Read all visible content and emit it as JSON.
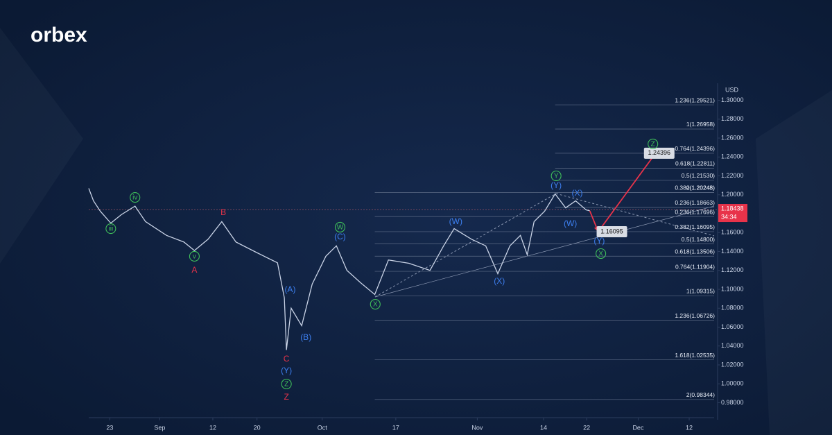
{
  "brand": "orbex",
  "chart_data": {
    "type": "line",
    "y_label": "USD",
    "xlim": [
      0,
      120
    ],
    "ylim": [
      0.962,
      1.318
    ],
    "xticks": [
      {
        "value": 4,
        "label": "23"
      },
      {
        "value": 13.5,
        "label": "Sep"
      },
      {
        "value": 23.6,
        "label": "12"
      },
      {
        "value": 32,
        "label": "20"
      },
      {
        "value": 44.4,
        "label": "Oct"
      },
      {
        "value": 58.4,
        "label": "17"
      },
      {
        "value": 73.9,
        "label": "Nov"
      },
      {
        "value": 86.5,
        "label": "14"
      },
      {
        "value": 94.7,
        "label": "22"
      },
      {
        "value": 104.5,
        "label": "Dec"
      },
      {
        "value": 114.2,
        "label": "12"
      }
    ],
    "yticks": [
      {
        "value": 0.98,
        "label": "0.98000"
      },
      {
        "value": 1.0,
        "label": "1.00000"
      },
      {
        "value": 1.02,
        "label": "1.02000"
      },
      {
        "value": 1.04,
        "label": "1.04000"
      },
      {
        "value": 1.06,
        "label": "1.06000"
      },
      {
        "value": 1.08,
        "label": "1.08000"
      },
      {
        "value": 1.1,
        "label": "1.10000"
      },
      {
        "value": 1.12,
        "label": "1.12000"
      },
      {
        "value": 1.14,
        "label": "1.14000"
      },
      {
        "value": 1.16,
        "label": "1.16000"
      },
      {
        "value": 1.18,
        "label": "1.18000"
      },
      {
        "value": 1.2,
        "label": "1.20000"
      },
      {
        "value": 1.22,
        "label": "1.22000"
      },
      {
        "value": 1.24,
        "label": "1.24000"
      },
      {
        "value": 1.26,
        "label": "1.26000"
      },
      {
        "value": 1.28,
        "label": "1.28000"
      },
      {
        "value": 1.3,
        "label": "1.30000"
      }
    ],
    "x": [
      0,
      0.9,
      2.2,
      4.2,
      6.2,
      8.8,
      10.8,
      14.8,
      18.1,
      20.1,
      22.7,
      25.3,
      28,
      31.9,
      35.9,
      37.2,
      37.6,
      38.5,
      40.5,
      42.5,
      45.1,
      47.1,
      49.1,
      51.7,
      54.4,
      57,
      60.9,
      64.9,
      67.5,
      69.5,
      72.8,
      75.5,
      77.8,
      80.1,
      82.1,
      83.4,
      84.7,
      86.7,
      88.7,
      90.7,
      92.6,
      94.6,
      95.3
    ],
    "series": [
      {
        "color": "#c9d3e6",
        "values": [
          1.2068,
          1.1936,
          1.1826,
          1.17,
          1.179,
          1.188,
          1.1716,
          1.157,
          1.15,
          1.141,
          1.153,
          1.1716,
          1.15,
          1.139,
          1.128,
          1.091,
          1.0358,
          1.08,
          1.0615,
          1.1055,
          1.135,
          1.146,
          1.12,
          1.107,
          1.0945,
          1.131,
          1.1275,
          1.12,
          1.146,
          1.1642,
          1.153,
          1.146,
          1.1165,
          1.146,
          1.157,
          1.1365,
          1.1716,
          1.1826,
          1.2009,
          1.1862,
          1.1936,
          1.184,
          1.183
        ]
      }
    ],
    "last_price": 1.18438,
    "countdown": "34:34",
    "fib": [
      {
        "start_x": 88.7,
        "levels": [
          {
            "label": "1.236(1.29521)",
            "price": 1.29521
          },
          {
            "label": "1(1.26958)",
            "price": 1.26958
          },
          {
            "label": "0.764(1.24396)",
            "price": 1.24396
          },
          {
            "label": "0.618(1.22811)",
            "price": 1.22811
          },
          {
            "label": "0.5(1.21530)",
            "price": 1.2153
          },
          {
            "label": "0.382(1.20248)",
            "price": 1.20248
          },
          {
            "label": "0.236(1.18663)",
            "price": 1.18663
          }
        ]
      },
      {
        "start_x": 54.4,
        "levels": [
          {
            "label": "0(1.20248)",
            "price": 1.20248
          },
          {
            "label": "0.236(1.17696)",
            "price": 1.17696
          },
          {
            "label": "0.382(1.16095)",
            "price": 1.16095
          },
          {
            "label": "0.5(1.14800)",
            "price": 1.148
          },
          {
            "label": "0.618(1.13506)",
            "price": 1.13506
          },
          {
            "label": "0.764(1.11904)",
            "price": 1.11904
          },
          {
            "label": "1(1.09315)",
            "price": 1.09315
          },
          {
            "label": "1.236(1.06726)",
            "price": 1.06726
          },
          {
            "label": "1.618(1.02535)",
            "price": 1.02535
          },
          {
            "label": "2(0.98344)",
            "price": 0.98344
          }
        ]
      }
    ],
    "forecast": {
      "color": "#e8334a",
      "x": [
        95.3,
        96.9,
        107.8
      ],
      "values": [
        1.183,
        1.16095,
        1.24396
      ]
    },
    "price_tags": [
      {
        "x": 108.5,
        "value": 1.24396
      },
      {
        "x": 99.5,
        "value": 1.16095
      }
    ],
    "waves": [
      {
        "text": "iii",
        "x": 4.2,
        "price": 1.1642,
        "color": "#3fbf5a",
        "circled": true
      },
      {
        "text": "iv",
        "x": 8.8,
        "price": 1.1972,
        "color": "#3fbf5a",
        "circled": true
      },
      {
        "text": "v",
        "x": 20.1,
        "price": 1.1349,
        "color": "#3fbf5a",
        "circled": true
      },
      {
        "text": "A",
        "x": 20.1,
        "price": 1.1202,
        "color": "#e8334a",
        "circled": false
      },
      {
        "text": "B",
        "x": 25.6,
        "price": 1.1811,
        "color": "#e8334a",
        "circled": false
      },
      {
        "text": "(A)",
        "x": 38.3,
        "price": 1.0996,
        "color": "#3d7ff0",
        "circled": false
      },
      {
        "text": "(B)",
        "x": 41.3,
        "price": 1.049,
        "color": "#3d7ff0",
        "circled": false
      },
      {
        "text": "C",
        "x": 37.6,
        "price": 1.0262,
        "color": "#e8334a",
        "circled": false
      },
      {
        "text": "(Y)",
        "x": 37.6,
        "price": 1.0138,
        "color": "#3d7ff0",
        "circled": false
      },
      {
        "text": "Z",
        "x": 37.6,
        "price": 0.9998,
        "color": "#3fbf5a",
        "circled": true
      },
      {
        "text": "Z",
        "x": 37.6,
        "price": 0.9859,
        "color": "#e8334a",
        "circled": false
      },
      {
        "text": "W",
        "x": 47.8,
        "price": 1.1657,
        "color": "#3fbf5a",
        "circled": true
      },
      {
        "text": "(C)",
        "x": 47.8,
        "price": 1.1554,
        "color": "#3d7ff0",
        "circled": false
      },
      {
        "text": "X",
        "x": 54.5,
        "price": 1.0842,
        "color": "#3fbf5a",
        "circled": true
      },
      {
        "text": "(W)",
        "x": 69.8,
        "price": 1.1716,
        "color": "#3d7ff0",
        "circled": false
      },
      {
        "text": "(X)",
        "x": 78.1,
        "price": 1.1084,
        "color": "#3d7ff0",
        "circled": false
      },
      {
        "text": "Y",
        "x": 88.9,
        "price": 1.22,
        "color": "#3fbf5a",
        "circled": true
      },
      {
        "text": "(Y)",
        "x": 88.9,
        "price": 1.2097,
        "color": "#3d7ff0",
        "circled": false
      },
      {
        "text": "(X)",
        "x": 92.9,
        "price": 1.2017,
        "color": "#3d7ff0",
        "circled": false
      },
      {
        "text": "(W)",
        "x": 91.6,
        "price": 1.1694,
        "color": "#3d7ff0",
        "circled": false
      },
      {
        "text": "(Y)",
        "x": 97.1,
        "price": 1.151,
        "color": "#3d7ff0",
        "circled": false
      },
      {
        "text": "X",
        "x": 97.4,
        "price": 1.1378,
        "color": "#3fbf5a",
        "circled": true
      },
      {
        "text": "Z",
        "x": 107.3,
        "price": 1.2538,
        "color": "#3fbf5a",
        "circled": true
      }
    ]
  }
}
